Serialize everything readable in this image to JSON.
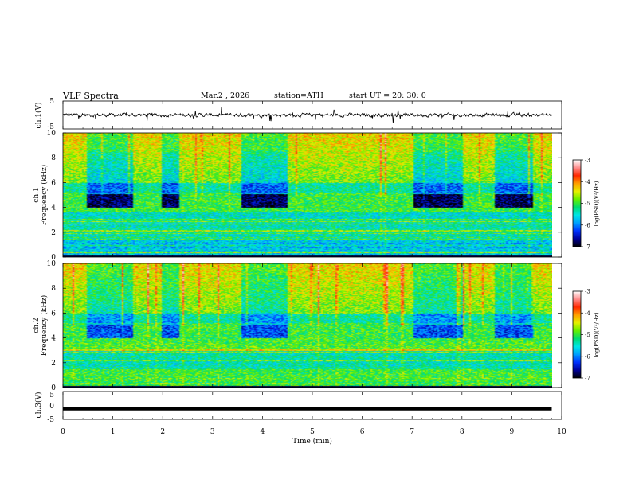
{
  "header": {
    "title": "VLF  Spectra",
    "date": "Mar.2  , 2026",
    "station": "station=ATH",
    "start": "start  UT  =   20: 30: 0"
  },
  "chart_data": [
    {
      "type": "line",
      "panel": "ch1-waveform",
      "ylabel": "ch.1(V)",
      "ylim": [
        -5,
        5
      ],
      "y_ticks": [
        "5",
        "-5"
      ],
      "x_range_min": [
        0,
        10
      ],
      "data_extent_min": [
        0,
        9.8
      ],
      "values_description_level": 0
    },
    {
      "type": "heatmap",
      "panel": "ch1-spectrogram",
      "ylabel": "ch.1\nFrequency  (kHz)",
      "ylim": [
        0,
        10
      ],
      "y_ticks": [
        "0",
        "2",
        "4",
        "6",
        "8",
        "10"
      ],
      "x_range_min": [
        0,
        10
      ],
      "data_extent_min": [
        0,
        9.8
      ],
      "quiet_bands_4_to_5_kHz_min": [
        [
          0.45,
          1.4
        ],
        [
          1.95,
          2.3
        ],
        [
          3.55,
          4.5
        ],
        [
          7.0,
          8.0
        ],
        [
          8.65,
          9.4
        ]
      ],
      "colorbar": {
        "label": "log(PSD)(V²/Hz)",
        "range": [
          -7,
          -3
        ],
        "ticks": [
          "-3",
          "-4",
          "-5",
          "-6",
          "-7"
        ]
      }
    },
    {
      "type": "heatmap",
      "panel": "ch2-spectrogram",
      "ylabel": "ch.2\nFrequency  (kHz)",
      "ylim": [
        0,
        10
      ],
      "y_ticks": [
        "0",
        "2",
        "4",
        "6",
        "8",
        "10"
      ],
      "x_range_min": [
        0,
        10
      ],
      "data_extent_min": [
        0,
        9.8
      ],
      "quiet_bands_4_to_5_kHz_min": [
        [
          0.45,
          1.4
        ],
        [
          1.95,
          2.3
        ],
        [
          3.55,
          4.5
        ],
        [
          7.0,
          8.0
        ],
        [
          8.65,
          9.4
        ]
      ],
      "colorbar": {
        "label": "log(PSD)(V²/Hz)",
        "range": [
          -7,
          -3
        ],
        "ticks": [
          "-3",
          "-4",
          "-5",
          "-6",
          "-7"
        ]
      }
    },
    {
      "type": "line",
      "panel": "ch3-waveform",
      "ylabel": "ch.3(V)",
      "ylim": [
        -5,
        5
      ],
      "y_ticks": [
        "5",
        "0",
        "-5"
      ],
      "x_range_min": [
        0,
        10
      ],
      "data_extent_min": [
        0,
        9.8
      ],
      "constant_value_V": -1.2
    }
  ],
  "x_axis": {
    "label": "Time  (min)",
    "ticks": [
      "0",
      "1",
      "2",
      "3",
      "4",
      "5",
      "6",
      "7",
      "8",
      "9",
      "10"
    ]
  },
  "colors": {
    "colormap": [
      "#000000",
      "#00009a",
      "#0032ff",
      "#00a0ff",
      "#00e6e6",
      "#00dc6e",
      "#64f000",
      "#e6f000",
      "#ffa000",
      "#ff2800",
      "#ff8c8c",
      "#ffffff"
    ]
  }
}
